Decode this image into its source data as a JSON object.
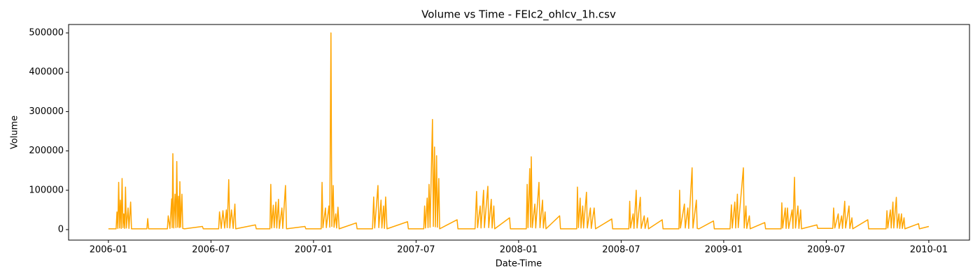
{
  "chart_data": {
    "type": "line",
    "title": "Volume vs Time - FEIc2_ohlcv_1h.csv",
    "x_label": "Date-Time",
    "y_label": "Volume",
    "color": "#ffa500",
    "x": [
      0,
      0.45,
      0.5,
      0.55,
      0.6,
      0.65,
      0.7,
      0.75,
      0.8,
      0.85,
      0.9,
      0.95,
      1.0,
      1.05,
      1.15,
      1.2,
      1.3,
      1.35,
      2.25,
      2.3,
      2.35,
      3.45,
      3.5,
      3.6,
      3.7,
      3.73,
      3.77,
      3.82,
      3.9,
      3.95,
      4.0,
      4.05,
      4.1,
      4.15,
      4.18,
      4.22,
      4.3,
      4.35,
      4.45,
      5.5,
      5.55,
      6.45,
      6.5,
      6.6,
      6.7,
      6.8,
      6.9,
      6.95,
      7.04,
      7.1,
      7.2,
      7.3,
      7.4,
      7.45,
      8.6,
      8.65,
      9.45,
      9.5,
      9.55,
      9.65,
      9.7,
      9.8,
      9.85,
      9.95,
      10.0,
      10.15,
      10.2,
      10.36,
      10.42,
      11.5,
      11.55,
      12.45,
      12.5,
      12.55,
      12.7,
      12.75,
      12.9,
      12.95,
      13.02,
      13.07,
      13.15,
      13.2,
      13.3,
      13.35,
      13.43,
      13.5,
      14.5,
      14.55,
      15.45,
      15.52,
      15.58,
      15.77,
      15.82,
      15.95,
      16.0,
      16.1,
      16.15,
      16.22,
      16.3,
      17.5,
      17.55,
      18.45,
      18.5,
      18.55,
      18.65,
      18.7,
      18.76,
      18.82,
      18.96,
      19.01,
      19.08,
      19.13,
      19.2,
      19.25,
      19.33,
      19.38,
      20.4,
      20.45,
      21.45,
      21.54,
      21.6,
      21.75,
      21.8,
      21.95,
      22.0,
      22.2,
      22.25,
      22.4,
      22.45,
      22.55,
      22.6,
      23.47,
      23.52,
      24.45,
      24.5,
      24.55,
      24.65,
      24.7,
      24.74,
      24.8,
      24.95,
      25.0,
      25.19,
      25.25,
      25.4,
      25.45,
      25.55,
      25.6,
      26.4,
      26.45,
      27.4,
      27.44,
      27.5,
      27.6,
      27.65,
      27.75,
      27.8,
      27.97,
      28.02,
      28.2,
      28.25,
      28.42,
      28.5,
      29.45,
      29.5,
      30.45,
      30.5,
      30.55,
      30.7,
      30.75,
      30.88,
      30.93,
      31.12,
      31.17,
      31.35,
      31.4,
      31.55,
      31.6,
      32.4,
      32.45,
      33.38,
      33.42,
      33.47,
      33.7,
      33.75,
      33.9,
      33.95,
      34.15,
      34.2,
      34.4,
      34.45,
      34.55,
      35.4,
      35.45,
      36.37,
      36.45,
      36.5,
      36.65,
      36.7,
      36.8,
      36.85,
      37.15,
      37.2,
      37.3,
      37.35,
      37.5,
      37.55,
      38.4,
      38.45,
      39.36,
      39.4,
      39.45,
      39.6,
      39.65,
      39.73,
      39.8,
      40.0,
      40.05,
      40.14,
      40.2,
      40.34,
      40.4,
      40.5,
      40.55,
      41.45,
      41.5,
      42.38,
      42.43,
      42.5,
      42.7,
      42.75,
      42.9,
      42.95,
      43.08,
      43.13,
      43.33,
      43.38,
      43.5,
      43.55,
      44.43,
      44.48,
      45.5,
      45.55,
      45.6,
      45.75,
      45.8,
      45.9,
      45.95,
      46.1,
      46.15,
      46.25,
      46.3,
      46.4,
      46.45,
      46.55,
      46.6,
      47.4,
      47.45,
      48.0
    ],
    "values": [
      2000,
      2000,
      45000,
      3000,
      120000,
      4000,
      75000,
      3000,
      130000,
      5000,
      40000,
      3000,
      108000,
      4000,
      55000,
      3000,
      70000,
      2000,
      2000,
      28000,
      2000,
      2000,
      35000,
      3000,
      78000,
      5000,
      193000,
      4000,
      90000,
      5000,
      173000,
      6000,
      85000,
      5000,
      122000,
      6000,
      90000,
      3000,
      2000,
      8000,
      2000,
      2000,
      45000,
      3000,
      48000,
      4000,
      50000,
      5000,
      127000,
      4000,
      50000,
      3000,
      65000,
      2000,
      12000,
      2000,
      2000,
      115000,
      4000,
      62000,
      5000,
      70000,
      4000,
      77000,
      3000,
      55000,
      3000,
      112000,
      2000,
      8000,
      2000,
      2000,
      120000,
      5000,
      55000,
      5000,
      60000,
      6000,
      500000,
      8000,
      112000,
      6000,
      40000,
      4000,
      57000,
      2000,
      17000,
      2000,
      2000,
      83000,
      4000,
      112000,
      5000,
      75000,
      4000,
      60000,
      3000,
      83000,
      2000,
      20000,
      2000,
      2000,
      60000,
      4000,
      80000,
      5000,
      115000,
      6000,
      280000,
      8000,
      210000,
      7000,
      188000,
      6000,
      130000,
      2000,
      25000,
      2000,
      2000,
      97000,
      5000,
      60000,
      4000,
      100000,
      5000,
      110000,
      5000,
      77000,
      4000,
      60000,
      2000,
      30000,
      2000,
      2000,
      115000,
      5000,
      155000,
      6000,
      185000,
      5000,
      65000,
      4000,
      120000,
      5000,
      75000,
      4000,
      45000,
      2000,
      35000,
      2000,
      2000,
      108000,
      5000,
      80000,
      4000,
      60000,
      4000,
      95000,
      4000,
      55000,
      3000,
      55000,
      2000,
      27000,
      2000,
      2000,
      72000,
      4000,
      40000,
      3000,
      100000,
      4000,
      82000,
      3000,
      35000,
      3000,
      30000,
      2000,
      25000,
      2000,
      2000,
      100000,
      4000,
      65000,
      4000,
      55000,
      3000,
      157000,
      4000,
      75000,
      3000,
      2000,
      22000,
      2000,
      2000,
      63000,
      4000,
      70000,
      4000,
      90000,
      5000,
      157000,
      4000,
      60000,
      3000,
      35000,
      2000,
      18000,
      2000,
      2000,
      68000,
      4000,
      55000,
      3000,
      55000,
      3000,
      50000,
      3000,
      133000,
      4000,
      60000,
      3000,
      50000,
      2000,
      12000,
      3000,
      3000,
      55000,
      4000,
      40000,
      3000,
      35000,
      3000,
      72000,
      4000,
      60000,
      3000,
      30000,
      2000,
      25000,
      2000,
      2000,
      48000,
      4000,
      50000,
      4000,
      70000,
      4000,
      82000,
      4000,
      40000,
      3000,
      40000,
      3000,
      30000,
      2000,
      15000,
      2000,
      8000
    ],
    "xlim": [
      -2.33,
      50.38
    ],
    "xticks": [
      {
        "value": 0,
        "label": "2006-01"
      },
      {
        "value": 6,
        "label": "2006-07"
      },
      {
        "value": 12,
        "label": "2007-01"
      },
      {
        "value": 18,
        "label": "2007-07"
      },
      {
        "value": 24,
        "label": "2008-01"
      },
      {
        "value": 30,
        "label": "2008-07"
      },
      {
        "value": 36,
        "label": "2009-01"
      },
      {
        "value": 42,
        "label": "2009-07"
      },
      {
        "value": 48,
        "label": "2010-01"
      }
    ],
    "ylim": [
      -26700,
      521400
    ],
    "yticks": [
      0,
      100000,
      200000,
      300000,
      400000,
      500000
    ]
  }
}
